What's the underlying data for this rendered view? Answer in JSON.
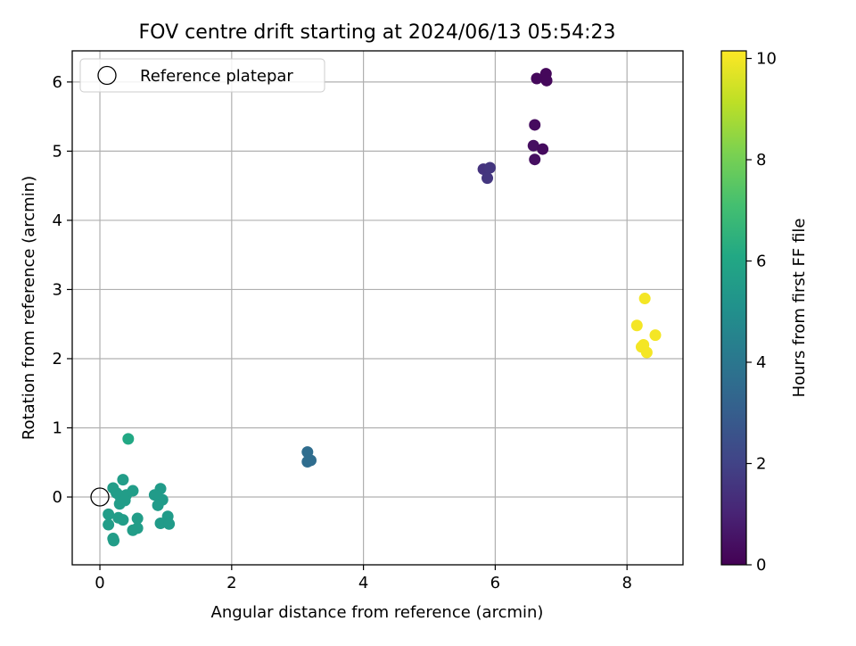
{
  "chart_data": {
    "type": "scatter",
    "title": "FOV centre drift starting at 2024/06/13 05:54:23",
    "xlabel": "Angular distance from reference (arcmin)",
    "ylabel": "Rotation from reference (arcmin)",
    "xlim": [
      -0.42,
      8.85
    ],
    "ylim": [
      -0.98,
      6.45
    ],
    "x_ticks": [
      0,
      2,
      4,
      6,
      8
    ],
    "y_ticks": [
      0,
      1,
      2,
      3,
      4,
      5,
      6
    ],
    "grid": true,
    "legend": {
      "placement": "top-left",
      "entries": [
        "Reference platepar"
      ]
    },
    "reference_point": {
      "x": 0,
      "y": 0,
      "label": "Reference platepar"
    },
    "colorbar": {
      "label": "Hours from first FF file",
      "range": [
        0,
        10.15
      ],
      "ticks": [
        0,
        2,
        4,
        6,
        8,
        10
      ],
      "colormap": "viridis"
    },
    "points": [
      {
        "x": 6.63,
        "y": 6.05,
        "h": 0.2
      },
      {
        "x": 6.77,
        "y": 6.12,
        "h": 0.2
      },
      {
        "x": 6.78,
        "y": 6.02,
        "h": 0.2
      },
      {
        "x": 6.6,
        "y": 5.38,
        "h": 0.3
      },
      {
        "x": 6.58,
        "y": 5.08,
        "h": 0.4
      },
      {
        "x": 6.72,
        "y": 5.03,
        "h": 0.3
      },
      {
        "x": 6.6,
        "y": 4.88,
        "h": 0.4
      },
      {
        "x": 5.82,
        "y": 4.74,
        "h": 1.5
      },
      {
        "x": 5.92,
        "y": 4.76,
        "h": 1.6
      },
      {
        "x": 5.88,
        "y": 4.61,
        "h": 1.6
      },
      {
        "x": 8.27,
        "y": 2.87,
        "h": 10.0
      },
      {
        "x": 8.15,
        "y": 2.48,
        "h": 10.0
      },
      {
        "x": 8.43,
        "y": 2.34,
        "h": 10.0
      },
      {
        "x": 8.25,
        "y": 2.2,
        "h": 10.0
      },
      {
        "x": 8.22,
        "y": 2.17,
        "h": 10.0
      },
      {
        "x": 8.3,
        "y": 2.09,
        "h": 10.0
      },
      {
        "x": 3.15,
        "y": 0.65,
        "h": 3.6
      },
      {
        "x": 3.2,
        "y": 0.53,
        "h": 3.6
      },
      {
        "x": 3.15,
        "y": 0.51,
        "h": 3.6
      },
      {
        "x": 0.43,
        "y": 0.84,
        "h": 6.1
      },
      {
        "x": 0.35,
        "y": 0.25,
        "h": 5.6
      },
      {
        "x": 0.2,
        "y": 0.13,
        "h": 5.6
      },
      {
        "x": 0.25,
        "y": 0.06,
        "h": 5.6
      },
      {
        "x": 0.3,
        "y": 0.02,
        "h": 5.6
      },
      {
        "x": 0.4,
        "y": 0.03,
        "h": 5.6
      },
      {
        "x": 0.5,
        "y": 0.09,
        "h": 5.6
      },
      {
        "x": 0.38,
        "y": -0.05,
        "h": 5.6
      },
      {
        "x": 0.3,
        "y": -0.1,
        "h": 5.6
      },
      {
        "x": 0.13,
        "y": -0.25,
        "h": 5.6
      },
      {
        "x": 0.28,
        "y": -0.3,
        "h": 5.6
      },
      {
        "x": 0.35,
        "y": -0.33,
        "h": 5.6
      },
      {
        "x": 0.13,
        "y": -0.4,
        "h": 5.6
      },
      {
        "x": 0.57,
        "y": -0.31,
        "h": 5.6
      },
      {
        "x": 0.57,
        "y": -0.45,
        "h": 5.6
      },
      {
        "x": 0.5,
        "y": -0.48,
        "h": 5.6
      },
      {
        "x": 0.2,
        "y": -0.6,
        "h": 5.6
      },
      {
        "x": 0.21,
        "y": -0.63,
        "h": 5.6
      },
      {
        "x": 0.92,
        "y": 0.12,
        "h": 5.5
      },
      {
        "x": 0.83,
        "y": 0.03,
        "h": 5.5
      },
      {
        "x": 0.95,
        "y": -0.04,
        "h": 5.5
      },
      {
        "x": 0.88,
        "y": -0.12,
        "h": 5.5
      },
      {
        "x": 1.03,
        "y": -0.28,
        "h": 5.5
      },
      {
        "x": 0.92,
        "y": -0.38,
        "h": 5.5
      },
      {
        "x": 1.05,
        "y": -0.39,
        "h": 5.5
      }
    ]
  }
}
